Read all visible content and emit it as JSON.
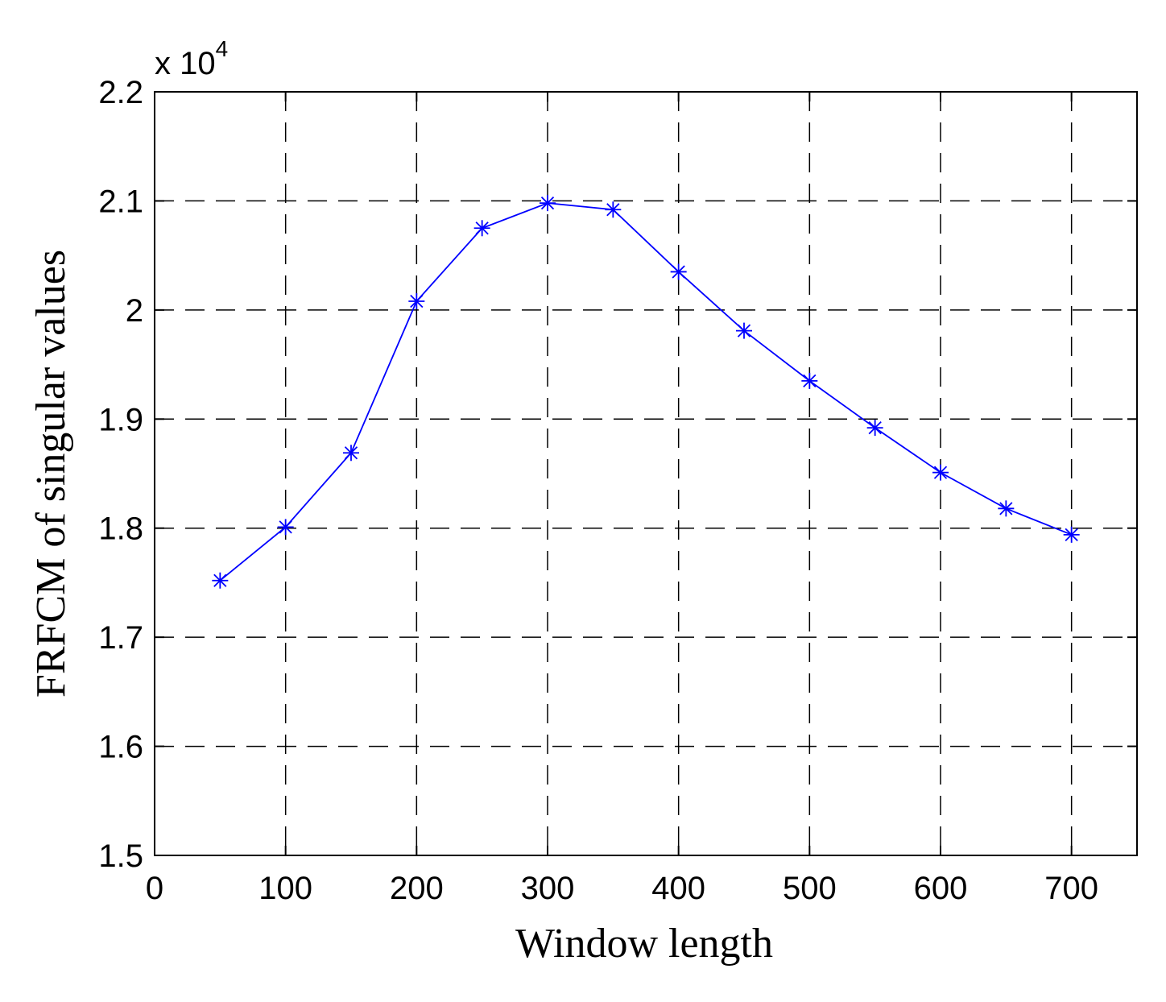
{
  "chart_data": {
    "type": "line",
    "xlabel": "Window length",
    "ylabel": "FRFCM of singular values",
    "y_multiplier": {
      "base": "x 10",
      "exponent": "4"
    },
    "xlim": [
      0,
      750
    ],
    "ylim": [
      1.5,
      2.2
    ],
    "x_ticks": [
      0,
      100,
      200,
      300,
      400,
      500,
      600,
      700
    ],
    "x_tick_labels": [
      "0",
      "100",
      "200",
      "300",
      "400",
      "500",
      "600",
      "700"
    ],
    "y_ticks": [
      1.5,
      1.6,
      1.7,
      1.8,
      1.9,
      2.0,
      2.1,
      2.2
    ],
    "y_tick_labels": [
      "1.5",
      "1.6",
      "1.7",
      "1.8",
      "1.9",
      "2",
      "2.1",
      "2.2"
    ],
    "grid": true,
    "marker": "asterisk",
    "series": [
      {
        "color": "#0000ff",
        "x": [
          50,
          100,
          150,
          200,
          250,
          300,
          350,
          400,
          450,
          500,
          550,
          600,
          650,
          700
        ],
        "y": [
          1.752,
          1.801,
          1.869,
          2.008,
          2.075,
          2.098,
          2.092,
          2.035,
          1.981,
          1.935,
          1.892,
          1.851,
          1.818,
          1.794
        ]
      }
    ]
  }
}
